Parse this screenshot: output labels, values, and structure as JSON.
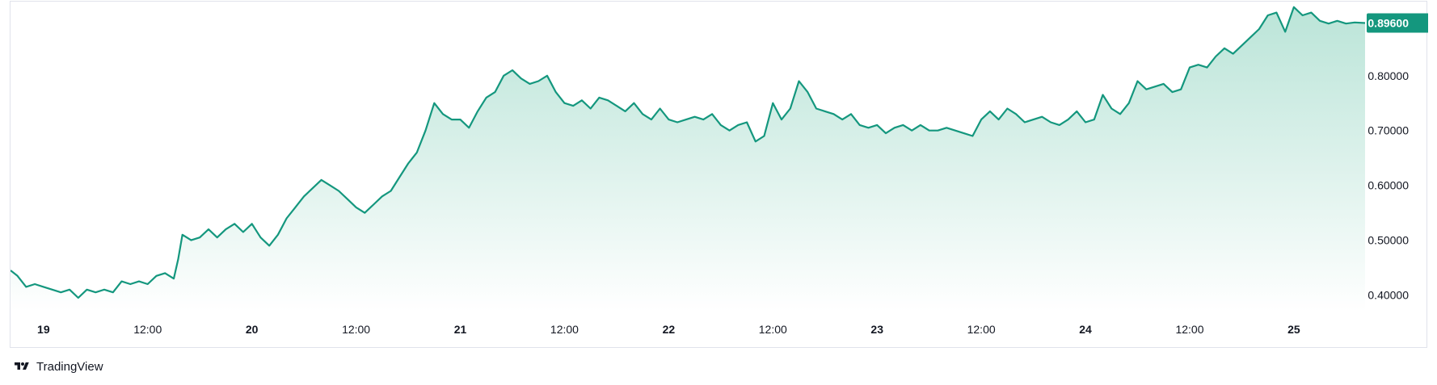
{
  "brand": {
    "name": "TradingView",
    "logo_icon": "tradingview-logo-icon"
  },
  "colors": {
    "line": "#14977e",
    "area_top": "#b7e3d6",
    "area_bottom": "#ffffff",
    "label_bg": "#14977e"
  },
  "chart_data": {
    "type": "area",
    "last_value_label": "0.89600",
    "x_ticks": [
      {
        "label": "19",
        "t": 0,
        "bold": true
      },
      {
        "label": "12:00",
        "t": 12,
        "bold": false
      },
      {
        "label": "20",
        "t": 24,
        "bold": true
      },
      {
        "label": "12:00",
        "t": 36,
        "bold": false
      },
      {
        "label": "21",
        "t": 48,
        "bold": true
      },
      {
        "label": "12:00",
        "t": 60,
        "bold": false
      },
      {
        "label": "22",
        "t": 72,
        "bold": true
      },
      {
        "label": "12:00",
        "t": 84,
        "bold": false
      },
      {
        "label": "23",
        "t": 96,
        "bold": true
      },
      {
        "label": "12:00",
        "t": 108,
        "bold": false
      },
      {
        "label": "24",
        "t": 120,
        "bold": true
      },
      {
        "label": "12:00",
        "t": 132,
        "bold": false
      },
      {
        "label": "25",
        "t": 144,
        "bold": true
      }
    ],
    "y_ticks": [
      "0.40000",
      "0.50000",
      "0.60000",
      "0.70000",
      "0.80000"
    ],
    "y_tick_values": [
      0.4,
      0.5,
      0.6,
      0.7,
      0.8
    ],
    "ylim": [
      0.37,
      0.935
    ],
    "xlim": [
      -3.8,
      152.2
    ],
    "series": [
      {
        "points": [
          [
            -3.8,
            0.445
          ],
          [
            -3,
            0.435
          ],
          [
            -2,
            0.415
          ],
          [
            -1,
            0.42
          ],
          [
            0,
            0.415
          ],
          [
            1,
            0.41
          ],
          [
            2,
            0.405
          ],
          [
            3,
            0.41
          ],
          [
            4,
            0.395
          ],
          [
            5,
            0.41
          ],
          [
            6,
            0.405
          ],
          [
            7,
            0.41
          ],
          [
            8,
            0.405
          ],
          [
            9,
            0.425
          ],
          [
            10,
            0.42
          ],
          [
            11,
            0.425
          ],
          [
            12,
            0.42
          ],
          [
            13,
            0.435
          ],
          [
            14,
            0.44
          ],
          [
            15,
            0.43
          ],
          [
            15.5,
            0.465
          ],
          [
            16,
            0.51
          ],
          [
            17,
            0.5
          ],
          [
            18,
            0.505
          ],
          [
            19,
            0.52
          ],
          [
            20,
            0.505
          ],
          [
            21,
            0.52
          ],
          [
            22,
            0.53
          ],
          [
            23,
            0.515
          ],
          [
            24,
            0.53
          ],
          [
            25,
            0.505
          ],
          [
            26,
            0.49
          ],
          [
            27,
            0.51
          ],
          [
            28,
            0.54
          ],
          [
            29,
            0.56
          ],
          [
            30,
            0.58
          ],
          [
            31,
            0.595
          ],
          [
            32,
            0.61
          ],
          [
            33,
            0.6
          ],
          [
            34,
            0.59
          ],
          [
            35,
            0.575
          ],
          [
            36,
            0.56
          ],
          [
            37,
            0.55
          ],
          [
            38,
            0.565
          ],
          [
            39,
            0.58
          ],
          [
            40,
            0.59
          ],
          [
            41,
            0.615
          ],
          [
            42,
            0.64
          ],
          [
            43,
            0.66
          ],
          [
            44,
            0.7
          ],
          [
            45,
            0.75
          ],
          [
            46,
            0.73
          ],
          [
            47,
            0.72
          ],
          [
            48,
            0.72
          ],
          [
            49,
            0.705
          ],
          [
            50,
            0.735
          ],
          [
            51,
            0.76
          ],
          [
            52,
            0.77
          ],
          [
            53,
            0.8
          ],
          [
            54,
            0.81
          ],
          [
            55,
            0.795
          ],
          [
            56,
            0.785
          ],
          [
            57,
            0.79
          ],
          [
            58,
            0.8
          ],
          [
            59,
            0.77
          ],
          [
            60,
            0.75
          ],
          [
            61,
            0.745
          ],
          [
            62,
            0.755
          ],
          [
            63,
            0.74
          ],
          [
            64,
            0.76
          ],
          [
            65,
            0.755
          ],
          [
            66,
            0.745
          ],
          [
            67,
            0.735
          ],
          [
            68,
            0.75
          ],
          [
            69,
            0.73
          ],
          [
            70,
            0.72
          ],
          [
            71,
            0.74
          ],
          [
            72,
            0.72
          ],
          [
            73,
            0.715
          ],
          [
            74,
            0.72
          ],
          [
            75,
            0.725
          ],
          [
            76,
            0.72
          ],
          [
            77,
            0.73
          ],
          [
            78,
            0.71
          ],
          [
            79,
            0.7
          ],
          [
            80,
            0.71
          ],
          [
            81,
            0.715
          ],
          [
            82,
            0.68
          ],
          [
            83,
            0.69
          ],
          [
            84,
            0.75
          ],
          [
            85,
            0.72
          ],
          [
            86,
            0.74
          ],
          [
            87,
            0.79
          ],
          [
            88,
            0.77
          ],
          [
            89,
            0.74
          ],
          [
            90,
            0.735
          ],
          [
            91,
            0.73
          ],
          [
            92,
            0.72
          ],
          [
            93,
            0.73
          ],
          [
            94,
            0.71
          ],
          [
            95,
            0.705
          ],
          [
            96,
            0.71
          ],
          [
            97,
            0.695
          ],
          [
            98,
            0.705
          ],
          [
            99,
            0.71
          ],
          [
            100,
            0.7
          ],
          [
            101,
            0.71
          ],
          [
            102,
            0.7
          ],
          [
            103,
            0.7
          ],
          [
            104,
            0.705
          ],
          [
            105,
            0.7
          ],
          [
            106,
            0.695
          ],
          [
            107,
            0.69
          ],
          [
            108,
            0.72
          ],
          [
            109,
            0.735
          ],
          [
            110,
            0.72
          ],
          [
            111,
            0.74
          ],
          [
            112,
            0.73
          ],
          [
            113,
            0.715
          ],
          [
            114,
            0.72
          ],
          [
            115,
            0.725
          ],
          [
            116,
            0.715
          ],
          [
            117,
            0.71
          ],
          [
            118,
            0.72
          ],
          [
            119,
            0.735
          ],
          [
            120,
            0.715
          ],
          [
            121,
            0.72
          ],
          [
            122,
            0.765
          ],
          [
            123,
            0.74
          ],
          [
            124,
            0.73
          ],
          [
            125,
            0.75
          ],
          [
            126,
            0.79
          ],
          [
            127,
            0.775
          ],
          [
            128,
            0.78
          ],
          [
            129,
            0.785
          ],
          [
            130,
            0.77
          ],
          [
            131,
            0.775
          ],
          [
            132,
            0.815
          ],
          [
            133,
            0.82
          ],
          [
            134,
            0.815
          ],
          [
            135,
            0.835
          ],
          [
            136,
            0.85
          ],
          [
            137,
            0.84
          ],
          [
            138,
            0.855
          ],
          [
            139,
            0.87
          ],
          [
            140,
            0.885
          ],
          [
            141,
            0.91
          ],
          [
            142,
            0.915
          ],
          [
            143,
            0.88
          ],
          [
            144,
            0.925
          ],
          [
            145,
            0.91
          ],
          [
            146,
            0.915
          ],
          [
            147,
            0.9
          ],
          [
            148,
            0.895
          ],
          [
            149,
            0.9
          ],
          [
            150,
            0.895
          ],
          [
            151,
            0.897
          ],
          [
            152.2,
            0.896
          ]
        ]
      }
    ]
  }
}
